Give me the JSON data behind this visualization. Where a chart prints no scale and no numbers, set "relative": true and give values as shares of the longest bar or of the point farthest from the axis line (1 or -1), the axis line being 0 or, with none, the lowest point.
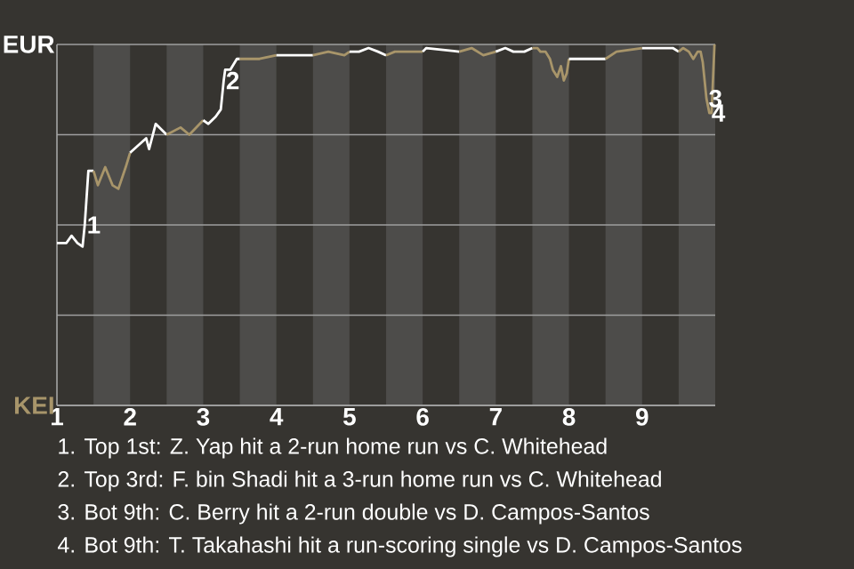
{
  "chart_data": {
    "type": "line",
    "relative": true,
    "xlim": [
      1,
      10
    ],
    "xticks": [
      1,
      2,
      3,
      4,
      5,
      6,
      7,
      8,
      9
    ],
    "grid": "y",
    "bands": [
      {
        "axis": "x",
        "from": 1.5,
        "to": 2,
        "color": "#4d4c4a"
      },
      {
        "axis": "x",
        "from": 2.5,
        "to": 3,
        "color": "#4d4c4a"
      },
      {
        "axis": "x",
        "from": 3.5,
        "to": 4,
        "color": "#4d4c4a"
      },
      {
        "axis": "x",
        "from": 4.5,
        "to": 5,
        "color": "#4d4c4a"
      },
      {
        "axis": "x",
        "from": 5.5,
        "to": 6,
        "color": "#4d4c4a"
      },
      {
        "axis": "x",
        "from": 6.5,
        "to": 7,
        "color": "#4d4c4a"
      },
      {
        "axis": "x",
        "from": 7.5,
        "to": 8,
        "color": "#4d4c4a"
      },
      {
        "axis": "x",
        "from": 8.5,
        "to": 9,
        "color": "#4d4c4a"
      },
      {
        "axis": "x",
        "from": 9.5,
        "to": 10,
        "color": "#4d4c4a"
      }
    ],
    "series": [
      {
        "color": "#ffffff",
        "x": [
          1,
          1.13,
          1.2,
          1.28,
          1.35,
          1.38,
          1.43,
          1.5
        ],
        "values": [
          0.45,
          0.45,
          0.47,
          0.45,
          0.44,
          0.5,
          0.65,
          0.65
        ]
      },
      {
        "color": "#a8956a",
        "x": [
          1.5,
          1.56,
          1.66,
          1.76,
          1.84,
          1.94,
          2
        ],
        "values": [
          0.65,
          0.61,
          0.66,
          0.61,
          0.6,
          0.66,
          0.7
        ]
      },
      {
        "color": "#ffffff",
        "x": [
          2,
          2.22,
          2.26,
          2.35,
          2.5
        ],
        "values": [
          0.7,
          0.74,
          0.71,
          0.78,
          0.75
        ]
      },
      {
        "color": "#a8956a",
        "x": [
          2.5,
          2.69,
          2.81,
          3
        ],
        "values": [
          0.75,
          0.77,
          0.75,
          0.79
        ]
      },
      {
        "color": "#ffffff",
        "x": [
          3,
          3.07,
          3.17,
          3.24,
          3.28,
          3.3,
          3.37,
          3.46,
          3.5
        ],
        "values": [
          0.79,
          0.78,
          0.8,
          0.82,
          0.9,
          0.93,
          0.93,
          0.96,
          0.96
        ]
      },
      {
        "color": "#a8956a",
        "x": [
          3.5,
          3.77,
          4
        ],
        "values": [
          0.96,
          0.96,
          0.97
        ]
      },
      {
        "color": "#ffffff",
        "x": [
          4,
          4.18,
          4.32,
          4.5
        ],
        "values": [
          0.97,
          0.97,
          0.97,
          0.97
        ]
      },
      {
        "color": "#a8956a",
        "x": [
          4.5,
          4.71,
          4.93,
          5
        ],
        "values": [
          0.97,
          0.98,
          0.97,
          0.98
        ]
      },
      {
        "color": "#ffffff",
        "x": [
          5,
          5.13,
          5.26,
          5.39,
          5.5
        ],
        "values": [
          0.98,
          0.98,
          0.99,
          0.98,
          0.97
        ]
      },
      {
        "color": "#a8956a",
        "x": [
          5.5,
          5.62,
          6
        ],
        "values": [
          0.97,
          0.98,
          0.98
        ]
      },
      {
        "color": "#ffffff",
        "x": [
          6,
          6.05,
          6.5
        ],
        "values": [
          0.98,
          0.99,
          0.98
        ]
      },
      {
        "color": "#a8956a",
        "x": [
          6.5,
          6.67,
          6.83,
          7
        ],
        "values": [
          0.98,
          0.99,
          0.97,
          0.98
        ]
      },
      {
        "color": "#ffffff",
        "x": [
          7,
          7.13,
          7.24,
          7.39,
          7.5
        ],
        "values": [
          0.98,
          0.99,
          0.98,
          0.98,
          0.99
        ]
      },
      {
        "color": "#a8956a",
        "x": [
          7.5,
          7.57,
          7.61,
          7.68,
          7.74,
          7.78,
          7.84,
          7.89,
          7.93,
          7.97,
          8
        ],
        "values": [
          0.99,
          0.99,
          0.98,
          0.98,
          0.96,
          0.93,
          0.91,
          0.94,
          0.9,
          0.92,
          0.96
        ]
      },
      {
        "color": "#ffffff",
        "x": [
          8,
          8.11,
          8.24,
          8.34,
          8.5
        ],
        "values": [
          0.96,
          0.96,
          0.96,
          0.96,
          0.96
        ]
      },
      {
        "color": "#a8956a",
        "x": [
          8.5,
          8.65,
          9
        ],
        "values": [
          0.96,
          0.98,
          0.99
        ]
      },
      {
        "color": "#ffffff",
        "x": [
          9,
          9.16,
          9.42,
          9.5
        ],
        "values": [
          0.99,
          0.99,
          0.99,
          0.98
        ]
      },
      {
        "color": "#a8956a",
        "x": [
          9.5,
          9.56,
          9.64,
          9.7,
          9.76,
          9.8,
          9.83,
          9.88,
          9.92,
          9.95,
          9.99
        ],
        "values": [
          0.98,
          0.99,
          0.98,
          0.96,
          0.98,
          0.98,
          0.95,
          0.85,
          0.81,
          0.81,
          1.0
        ]
      }
    ],
    "annotations": [
      "EUR",
      "KEI",
      {
        "text": "1",
        "x": 1.38,
        "y": 0.5
      },
      {
        "text": "2",
        "x": 3.28,
        "y": 0.9
      },
      {
        "text": "3",
        "x": 9.88,
        "y": 0.85
      },
      {
        "text": "4",
        "x": 9.92,
        "y": 0.81
      },
      "1. Top 1st: Z. Yap hit a 2-run home run vs C. Whitehead",
      "2. Top 3rd: F. bin Shadi hit a 3-run home run vs C. Whitehead",
      "3. Bot 9th: C. Berry hit a 2-run double vs D. Campos-Santos",
      "4. Bot 9th: T. Takahashi hit a run-scoring single vs D. Campos-Santos"
    ]
  }
}
